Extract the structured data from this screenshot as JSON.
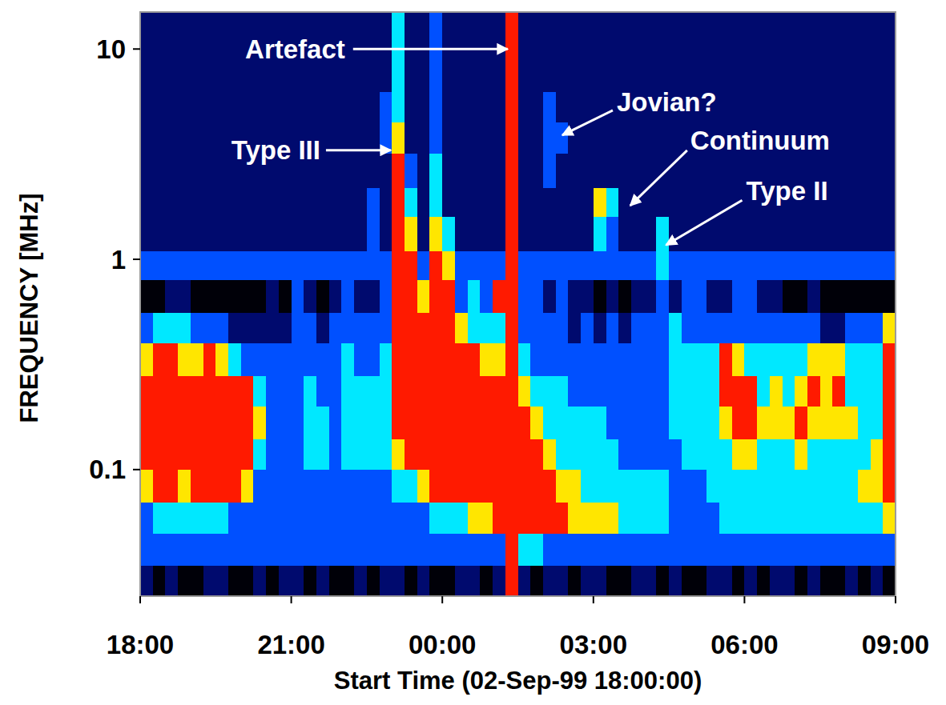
{
  "chart_data": {
    "type": "heatmap",
    "xlabel": "Start Time (02-Sep-99 18:00:00)",
    "ylabel": "FREQUENCY [MHz]",
    "log": "y",
    "xlim": [
      18,
      33
    ],
    "ylim": [
      0.025,
      15
    ],
    "xticks": [
      {
        "value": 18,
        "label": "18:00"
      },
      {
        "value": 21,
        "label": "21:00"
      },
      {
        "value": 24,
        "label": "00:00"
      },
      {
        "value": 27,
        "label": "03:00"
      },
      {
        "value": 30,
        "label": "06:00"
      },
      {
        "value": 33,
        "label": "09:00"
      }
    ],
    "yticks": [
      0.1,
      1,
      10
    ],
    "zlim": [
      0,
      5
    ],
    "x_edges": [
      18,
      18.25,
      18.5,
      18.75,
      19,
      19.25,
      19.5,
      19.75,
      20,
      20.25,
      20.5,
      20.75,
      21,
      21.25,
      21.5,
      21.75,
      22,
      22.25,
      22.5,
      22.75,
      23,
      23.25,
      23.5,
      23.75,
      24,
      24.25,
      24.5,
      24.75,
      25,
      25.25,
      25.5,
      25.75,
      26,
      26.25,
      26.5,
      26.75,
      27,
      27.25,
      27.5,
      27.75,
      28,
      28.25,
      28.5,
      28.75,
      29,
      29.25,
      29.5,
      29.75,
      30,
      30.25,
      30.5,
      30.75,
      31,
      31.25,
      31.5,
      31.75,
      32,
      32.25,
      32.5,
      32.75,
      33
    ],
    "y_edges": [
      0.025,
      0.035,
      0.05,
      0.07,
      0.1,
      0.14,
      0.2,
      0.28,
      0.4,
      0.56,
      0.8,
      1.1,
      1.6,
      2.2,
      3.2,
      4.5,
      6.3,
      9,
      15
    ],
    "cells": [
      [
        1,
        0,
        1,
        0,
        0,
        1,
        1,
        0,
        0,
        1,
        0,
        1,
        1,
        0,
        1,
        0,
        0,
        1,
        0,
        1,
        1,
        0,
        1,
        0,
        0,
        1,
        1,
        0,
        1,
        5,
        1,
        0,
        1,
        1,
        0,
        1,
        1,
        0,
        0,
        1,
        1,
        0,
        1,
        0,
        0,
        1,
        1,
        0,
        1,
        0,
        1,
        1,
        0,
        1,
        0,
        0,
        1,
        0,
        1,
        0
      ],
      [
        2,
        2,
        2,
        2,
        2,
        2,
        2,
        2,
        2,
        2,
        2,
        2,
        2,
        2,
        2,
        2,
        2,
        2,
        2,
        2,
        2,
        2,
        2,
        2,
        2,
        2,
        2,
        2,
        2,
        5,
        3,
        3,
        2,
        2,
        2,
        2,
        2,
        2,
        2,
        2,
        2,
        2,
        2,
        2,
        2,
        2,
        2,
        2,
        2,
        2,
        2,
        2,
        2,
        2,
        2,
        2,
        2,
        2,
        2,
        2
      ],
      [
        2,
        3,
        3,
        3,
        3,
        3,
        3,
        2,
        2,
        2,
        2,
        2,
        2,
        2,
        2,
        2,
        2,
        2,
        2,
        2,
        2,
        2,
        2,
        3,
        3,
        3,
        4,
        4,
        5,
        5,
        5,
        5,
        5,
        5,
        4,
        4,
        4,
        4,
        3,
        3,
        3,
        3,
        2,
        2,
        2,
        2,
        3,
        3,
        3,
        3,
        3,
        3,
        3,
        3,
        3,
        3,
        3,
        3,
        3,
        4
      ],
      [
        4,
        5,
        5,
        4,
        5,
        5,
        5,
        5,
        4,
        2,
        2,
        2,
        2,
        2,
        2,
        2,
        2,
        2,
        2,
        2,
        3,
        3,
        4,
        5,
        5,
        5,
        5,
        5,
        5,
        5,
        5,
        5,
        5,
        4,
        4,
        3,
        3,
        3,
        3,
        3,
        3,
        3,
        2,
        2,
        2,
        3,
        3,
        3,
        3,
        3,
        3,
        3,
        3,
        3,
        3,
        3,
        3,
        4,
        4,
        5
      ],
      [
        5,
        5,
        5,
        5,
        5,
        5,
        5,
        5,
        5,
        3,
        2,
        2,
        2,
        3,
        3,
        2,
        3,
        3,
        3,
        3,
        4,
        5,
        5,
        5,
        5,
        5,
        5,
        5,
        5,
        5,
        5,
        5,
        4,
        3,
        3,
        3,
        3,
        3,
        2,
        2,
        2,
        2,
        2,
        3,
        3,
        3,
        3,
        4,
        4,
        3,
        3,
        3,
        4,
        3,
        3,
        3,
        3,
        3,
        4,
        5
      ],
      [
        5,
        5,
        5,
        5,
        5,
        5,
        5,
        5,
        5,
        4,
        2,
        2,
        2,
        3,
        3,
        2,
        3,
        3,
        3,
        3,
        5,
        5,
        5,
        5,
        5,
        5,
        5,
        5,
        5,
        5,
        5,
        4,
        3,
        3,
        3,
        3,
        3,
        2,
        2,
        2,
        2,
        2,
        3,
        3,
        3,
        3,
        4,
        5,
        5,
        4,
        4,
        4,
        5,
        4,
        4,
        4,
        4,
        3,
        3,
        5
      ],
      [
        5,
        5,
        5,
        5,
        5,
        5,
        5,
        5,
        5,
        3,
        2,
        2,
        2,
        3,
        2,
        2,
        3,
        3,
        3,
        3,
        5,
        5,
        5,
        5,
        5,
        5,
        5,
        5,
        5,
        5,
        4,
        3,
        3,
        3,
        2,
        2,
        2,
        2,
        2,
        2,
        2,
        2,
        3,
        3,
        3,
        3,
        5,
        5,
        5,
        3,
        4,
        3,
        4,
        5,
        4,
        5,
        3,
        3,
        3,
        5
      ],
      [
        4,
        5,
        5,
        4,
        4,
        5,
        4,
        3,
        2,
        2,
        2,
        2,
        2,
        2,
        2,
        2,
        3,
        2,
        2,
        3,
        5,
        5,
        5,
        5,
        5,
        5,
        5,
        4,
        4,
        5,
        3,
        2,
        2,
        2,
        2,
        2,
        2,
        2,
        2,
        2,
        2,
        2,
        3,
        3,
        3,
        3,
        5,
        4,
        3,
        3,
        3,
        3,
        3,
        4,
        4,
        4,
        3,
        3,
        3,
        5
      ],
      [
        2,
        3,
        3,
        3,
        2,
        2,
        2,
        1,
        1,
        1,
        1,
        1,
        2,
        2,
        1,
        2,
        2,
        2,
        2,
        2,
        5,
        5,
        5,
        5,
        5,
        4,
        3,
        3,
        3,
        5,
        2,
        2,
        2,
        2,
        1,
        2,
        1,
        2,
        1,
        2,
        2,
        2,
        3,
        2,
        2,
        2,
        2,
        2,
        2,
        2,
        2,
        2,
        2,
        2,
        1,
        1,
        2,
        2,
        2,
        4
      ],
      [
        0,
        0,
        1,
        1,
        0,
        0,
        0,
        0,
        0,
        0,
        1,
        0,
        2,
        1,
        0,
        1,
        2,
        1,
        1,
        2,
        5,
        5,
        4,
        5,
        5,
        2,
        3,
        2,
        5,
        5,
        2,
        2,
        1,
        2,
        1,
        1,
        0,
        1,
        0,
        1,
        1,
        2,
        1,
        2,
        2,
        1,
        1,
        2,
        2,
        1,
        1,
        0,
        0,
        1,
        0,
        0,
        0,
        0,
        0,
        0
      ],
      [
        2,
        2,
        2,
        2,
        2,
        2,
        2,
        2,
        2,
        2,
        2,
        2,
        2,
        2,
        2,
        2,
        2,
        2,
        2,
        2,
        5,
        5,
        2,
        5,
        4,
        2,
        2,
        2,
        2,
        5,
        2,
        2,
        2,
        2,
        2,
        2,
        2,
        2,
        2,
        2,
        2,
        3,
        2,
        2,
        2,
        2,
        2,
        2,
        2,
        2,
        2,
        2,
        2,
        2,
        2,
        2,
        2,
        2,
        2,
        2
      ],
      [
        1,
        1,
        1,
        1,
        1,
        1,
        1,
        1,
        1,
        1,
        1,
        1,
        1,
        1,
        1,
        1,
        1,
        1,
        2,
        1,
        5,
        4,
        1,
        4,
        3,
        1,
        1,
        1,
        1,
        5,
        1,
        1,
        1,
        1,
        1,
        1,
        3,
        2,
        1,
        1,
        1,
        3,
        1,
        1,
        1,
        1,
        1,
        1,
        1,
        1,
        1,
        1,
        1,
        1,
        1,
        1,
        1,
        1,
        1,
        1
      ],
      [
        1,
        1,
        1,
        1,
        1,
        1,
        1,
        1,
        1,
        1,
        1,
        1,
        1,
        1,
        1,
        1,
        1,
        1,
        2,
        1,
        5,
        3,
        1,
        3,
        1,
        1,
        1,
        1,
        1,
        5,
        1,
        1,
        1,
        1,
        1,
        1,
        4,
        3,
        1,
        1,
        1,
        1,
        1,
        1,
        1,
        1,
        1,
        1,
        1,
        1,
        1,
        1,
        1,
        1,
        1,
        1,
        1,
        1,
        1,
        1
      ],
      [
        1,
        1,
        1,
        1,
        1,
        1,
        1,
        1,
        1,
        1,
        1,
        1,
        1,
        1,
        1,
        1,
        1,
        1,
        1,
        1,
        5,
        2,
        1,
        3,
        1,
        1,
        1,
        1,
        1,
        5,
        1,
        1,
        2,
        1,
        1,
        1,
        1,
        1,
        1,
        1,
        1,
        1,
        1,
        1,
        1,
        1,
        1,
        1,
        1,
        1,
        1,
        1,
        1,
        1,
        1,
        1,
        1,
        1,
        1,
        1
      ],
      [
        1,
        1,
        1,
        1,
        1,
        1,
        1,
        1,
        1,
        1,
        1,
        1,
        1,
        1,
        1,
        1,
        1,
        1,
        1,
        2,
        4,
        1,
        1,
        2,
        1,
        1,
        1,
        1,
        1,
        5,
        1,
        1,
        2,
        2,
        1,
        1,
        1,
        1,
        1,
        1,
        1,
        1,
        1,
        1,
        1,
        1,
        1,
        1,
        1,
        1,
        1,
        1,
        1,
        1,
        1,
        1,
        1,
        1,
        1,
        1
      ],
      [
        1,
        1,
        1,
        1,
        1,
        1,
        1,
        1,
        1,
        1,
        1,
        1,
        1,
        1,
        1,
        1,
        1,
        1,
        1,
        2,
        3,
        1,
        1,
        2,
        1,
        1,
        1,
        1,
        1,
        5,
        1,
        1,
        2,
        1,
        1,
        1,
        1,
        1,
        1,
        1,
        1,
        1,
        1,
        1,
        1,
        1,
        1,
        1,
        1,
        1,
        1,
        1,
        1,
        1,
        1,
        1,
        1,
        1,
        1,
        1
      ],
      [
        1,
        1,
        1,
        1,
        1,
        1,
        1,
        1,
        1,
        1,
        1,
        1,
        1,
        1,
        1,
        1,
        1,
        1,
        1,
        1,
        3,
        1,
        1,
        2,
        1,
        1,
        1,
        1,
        1,
        5,
        1,
        1,
        1,
        1,
        1,
        1,
        1,
        1,
        1,
        1,
        1,
        1,
        1,
        1,
        1,
        1,
        1,
        1,
        1,
        1,
        1,
        1,
        1,
        1,
        1,
        1,
        1,
        1,
        1,
        1
      ],
      [
        1,
        1,
        1,
        1,
        1,
        1,
        1,
        1,
        1,
        1,
        1,
        1,
        1,
        1,
        1,
        1,
        1,
        1,
        1,
        1,
        3,
        1,
        1,
        2,
        1,
        1,
        1,
        1,
        1,
        5,
        1,
        1,
        1,
        1,
        1,
        1,
        1,
        1,
        1,
        1,
        1,
        1,
        1,
        1,
        1,
        1,
        1,
        1,
        1,
        1,
        1,
        1,
        1,
        1,
        1,
        1,
        1,
        1,
        1,
        1
      ]
    ],
    "annotations": [
      {
        "text": "Artefact",
        "x": 25.25,
        "y": 10
      },
      {
        "text": "Type III",
        "x": 22.93,
        "y": 3.3
      },
      {
        "text": "Jovian?",
        "x": 26.43,
        "y": 4
      },
      {
        "text": "Continuum",
        "x": 27.78,
        "y": 1.85
      },
      {
        "text": "Type II",
        "x": 28.49,
        "y": 1.2
      }
    ]
  }
}
